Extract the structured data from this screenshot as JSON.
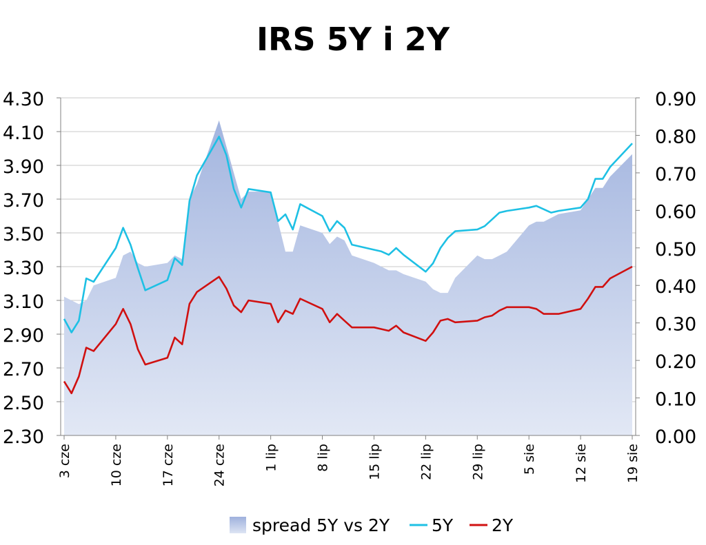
{
  "chart_data": {
    "type": "line",
    "title": "IRS 5Y i 2Y",
    "xlabel": "",
    "ylabel": "",
    "y2label": "",
    "grid": true,
    "legend_position": "bottom",
    "x_tick_labels": [
      "3 cze",
      "10 cze",
      "17 cze",
      "24 cze",
      "1 lip",
      "8 lip",
      "15 lip",
      "22 lip",
      "29 lip",
      "5 sie",
      "12 sie",
      "19 sie"
    ],
    "y_left": {
      "min": 2.3,
      "max": 4.3,
      "ticks": [
        "4.30",
        "4.10",
        "3.90",
        "3.70",
        "3.50",
        "3.30",
        "3.10",
        "2.90",
        "2.70",
        "2.50",
        "2.30"
      ]
    },
    "y_right": {
      "min": 0.0,
      "max": 0.9,
      "ticks": [
        "0.90",
        "0.80",
        "0.70",
        "0.60",
        "0.50",
        "0.40",
        "0.30",
        "0.20",
        "0.10",
        "0.00"
      ]
    },
    "x_days": [
      0,
      1,
      2,
      3,
      4,
      7,
      8,
      9,
      10,
      11,
      14,
      15,
      16,
      17,
      18,
      21,
      22,
      23,
      24,
      25,
      28,
      29,
      30,
      31,
      32,
      35,
      36,
      37,
      38,
      39,
      42,
      43,
      44,
      45,
      46,
      49,
      50,
      51,
      52,
      53,
      56,
      57,
      58,
      59,
      60,
      63,
      64,
      65,
      66,
      67,
      70,
      71,
      72,
      73,
      74,
      77
    ],
    "series": [
      {
        "name": "spread 5Y vs 2Y",
        "axis": "right",
        "kind": "area",
        "color": "#a9b9e1",
        "values": [
          0.37,
          0.36,
          0.35,
          0.36,
          0.4,
          0.42,
          0.48,
          0.49,
          0.46,
          0.45,
          0.46,
          0.48,
          0.47,
          0.63,
          0.67,
          0.84,
          0.77,
          0.7,
          0.63,
          0.65,
          0.65,
          0.57,
          0.49,
          0.49,
          0.56,
          0.54,
          0.51,
          0.53,
          0.52,
          0.48,
          0.46,
          0.45,
          0.44,
          0.44,
          0.43,
          0.41,
          0.39,
          0.38,
          0.38,
          0.42,
          0.48,
          0.47,
          0.47,
          0.48,
          0.49,
          0.56,
          0.57,
          0.57,
          0.58,
          0.59,
          0.6,
          0.63,
          0.66,
          0.66,
          0.69,
          0.75
        ]
      },
      {
        "name": "5Y",
        "axis": "left",
        "kind": "line",
        "color": "#1ec0e4",
        "values": [
          2.99,
          2.91,
          2.98,
          3.23,
          3.21,
          3.41,
          3.53,
          3.43,
          3.29,
          3.16,
          3.22,
          3.35,
          3.31,
          3.69,
          3.84,
          4.07,
          3.96,
          3.76,
          3.65,
          3.76,
          3.74,
          3.57,
          3.61,
          3.52,
          3.67,
          3.6,
          3.51,
          3.57,
          3.53,
          3.43,
          3.4,
          3.39,
          3.37,
          3.41,
          3.37,
          3.27,
          3.32,
          3.41,
          3.47,
          3.51,
          3.52,
          3.54,
          3.58,
          3.62,
          3.63,
          3.65,
          3.66,
          3.64,
          3.62,
          3.63,
          3.65,
          3.7,
          3.82,
          3.82,
          3.89,
          4.03
        ]
      },
      {
        "name": "2Y",
        "axis": "left",
        "kind": "line",
        "color": "#d01010",
        "values": [
          2.62,
          2.55,
          2.65,
          2.82,
          2.8,
          2.96,
          3.05,
          2.96,
          2.81,
          2.72,
          2.76,
          2.88,
          2.84,
          3.08,
          3.15,
          3.24,
          3.17,
          3.07,
          3.03,
          3.1,
          3.08,
          2.97,
          3.04,
          3.02,
          3.11,
          3.05,
          2.97,
          3.02,
          2.98,
          2.94,
          2.94,
          2.93,
          2.92,
          2.95,
          2.91,
          2.86,
          2.91,
          2.98,
          2.99,
          2.97,
          2.98,
          3.0,
          3.01,
          3.04,
          3.06,
          3.06,
          3.05,
          3.02,
          3.02,
          3.02,
          3.05,
          3.11,
          3.18,
          3.18,
          3.23,
          3.3
        ]
      }
    ]
  }
}
